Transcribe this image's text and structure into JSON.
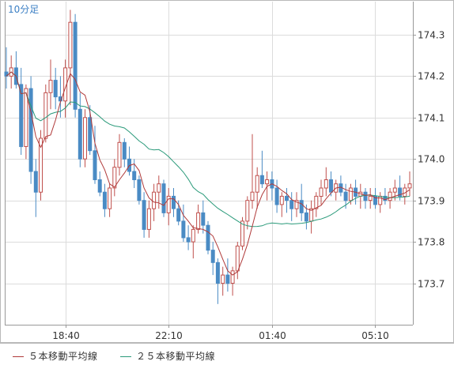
{
  "chart_data": {
    "type": "candlestick",
    "timeframe_label": "10分足",
    "y_ticks": [
      173.7,
      173.8,
      173.9,
      174.0,
      174.1,
      174.2,
      174.3
    ],
    "y_tick_labels": [
      "173.7",
      "173.8",
      "173.9",
      "174.0",
      "174.1",
      "174.2",
      "174.3"
    ],
    "ylim": [
      173.6,
      174.38
    ],
    "x_tick_labels": [
      "18:40",
      "22:10",
      "01:40",
      "05:10"
    ],
    "grid": true,
    "legend_position": "bottom",
    "series": [
      {
        "name": "５本移動平均線",
        "color": "#b03a3a"
      },
      {
        "name": "２５本移動平均線",
        "color": "#2a9a7a"
      }
    ],
    "candles": [
      [
        174.21,
        174.27,
        174.17,
        174.2
      ],
      [
        174.2,
        174.25,
        174.17,
        174.22
      ],
      [
        174.22,
        174.26,
        174.17,
        174.18
      ],
      [
        174.18,
        174.22,
        174.01,
        174.03
      ],
      [
        174.03,
        174.18,
        174.0,
        174.17
      ],
      [
        174.17,
        174.2,
        173.94,
        173.97
      ],
      [
        173.97,
        174.0,
        173.86,
        173.92
      ],
      [
        173.92,
        174.07,
        173.9,
        174.05
      ],
      [
        174.05,
        174.18,
        174.04,
        174.16
      ],
      [
        174.16,
        174.24,
        174.12,
        174.19
      ],
      [
        174.19,
        174.22,
        174.12,
        174.15
      ],
      [
        174.15,
        174.2,
        174.1,
        174.14
      ],
      [
        174.14,
        174.24,
        174.1,
        174.22
      ],
      [
        174.22,
        174.36,
        174.13,
        174.33
      ],
      [
        174.33,
        174.35,
        174.1,
        174.12
      ],
      [
        174.12,
        174.16,
        173.98,
        174.0
      ],
      [
        174.0,
        174.12,
        173.98,
        174.1
      ],
      [
        174.1,
        174.13,
        174.01,
        174.02
      ],
      [
        174.02,
        174.08,
        173.94,
        173.95
      ],
      [
        173.95,
        173.97,
        173.91,
        173.92
      ],
      [
        173.92,
        173.94,
        173.86,
        173.88
      ],
      [
        173.88,
        173.94,
        173.86,
        173.93
      ],
      [
        173.93,
        174.0,
        173.91,
        173.98
      ],
      [
        173.98,
        174.06,
        173.96,
        174.04
      ],
      [
        174.04,
        174.05,
        173.98,
        174.0
      ],
      [
        174.0,
        174.03,
        173.96,
        173.97
      ],
      [
        173.97,
        174.0,
        173.93,
        173.95
      ],
      [
        173.95,
        173.96,
        173.89,
        173.9
      ],
      [
        173.9,
        173.92,
        173.81,
        173.83
      ],
      [
        173.83,
        173.9,
        173.81,
        173.88
      ],
      [
        173.88,
        173.94,
        173.85,
        173.92
      ],
      [
        173.92,
        173.96,
        173.88,
        173.94
      ],
      [
        173.94,
        173.95,
        173.86,
        173.87
      ],
      [
        173.87,
        173.93,
        173.84,
        173.91
      ],
      [
        173.91,
        173.93,
        173.86,
        173.88
      ],
      [
        173.88,
        173.9,
        173.84,
        173.85
      ],
      [
        173.85,
        173.89,
        173.8,
        173.81
      ],
      [
        173.81,
        173.84,
        173.78,
        173.8
      ],
      [
        173.8,
        173.84,
        173.76,
        173.83
      ],
      [
        173.83,
        173.89,
        173.82,
        173.87
      ],
      [
        173.87,
        173.9,
        173.82,
        173.84
      ],
      [
        173.84,
        173.85,
        173.77,
        173.78
      ],
      [
        173.78,
        173.8,
        173.72,
        173.75
      ],
      [
        173.75,
        173.76,
        173.65,
        173.7
      ],
      [
        173.7,
        173.74,
        173.67,
        173.72
      ],
      [
        173.72,
        173.76,
        173.68,
        173.7
      ],
      [
        173.7,
        173.74,
        173.67,
        173.73
      ],
      [
        173.73,
        173.8,
        173.71,
        173.79
      ],
      [
        173.79,
        173.86,
        173.78,
        173.85
      ],
      [
        173.85,
        173.91,
        173.83,
        173.9
      ],
      [
        173.9,
        174.06,
        173.88,
        173.92
      ],
      [
        173.92,
        173.98,
        173.88,
        173.96
      ],
      [
        173.96,
        174.02,
        173.93,
        173.94
      ],
      [
        173.94,
        173.97,
        173.9,
        173.95
      ],
      [
        173.95,
        173.97,
        173.9,
        173.93
      ],
      [
        173.93,
        173.95,
        173.87,
        173.89
      ],
      [
        173.89,
        173.92,
        173.86,
        173.91
      ],
      [
        173.91,
        173.93,
        173.87,
        173.9
      ],
      [
        173.9,
        173.92,
        173.85,
        173.88
      ],
      [
        173.88,
        173.92,
        173.86,
        173.9
      ],
      [
        173.9,
        173.94,
        173.85,
        173.87
      ],
      [
        173.87,
        173.89,
        173.83,
        173.85
      ],
      [
        173.85,
        173.9,
        173.82,
        173.88
      ],
      [
        173.88,
        173.92,
        173.86,
        173.91
      ],
      [
        173.91,
        173.95,
        173.89,
        173.93
      ],
      [
        173.93,
        173.98,
        173.91,
        173.95
      ],
      [
        173.95,
        173.97,
        173.91,
        173.92
      ],
      [
        173.92,
        173.95,
        173.9,
        173.94
      ],
      [
        173.94,
        173.96,
        173.91,
        173.92
      ],
      [
        173.92,
        173.94,
        173.88,
        173.9
      ],
      [
        173.9,
        173.94,
        173.89,
        173.93
      ],
      [
        173.93,
        173.95,
        173.89,
        173.91
      ],
      [
        173.91,
        173.94,
        173.88,
        173.92
      ],
      [
        173.92,
        173.93,
        173.88,
        173.9
      ],
      [
        173.9,
        173.93,
        173.88,
        173.91
      ],
      [
        173.91,
        173.93,
        173.88,
        173.89
      ],
      [
        173.89,
        173.92,
        173.87,
        173.91
      ],
      [
        173.91,
        173.93,
        173.89,
        173.9
      ],
      [
        173.9,
        173.93,
        173.88,
        173.92
      ],
      [
        173.92,
        173.95,
        173.9,
        173.93
      ],
      [
        173.93,
        173.96,
        173.9,
        173.91
      ],
      [
        173.91,
        173.94,
        173.89,
        173.93
      ],
      [
        173.93,
        173.97,
        173.91,
        173.94
      ]
    ]
  },
  "legend": {
    "ma5_label": "５本移動平均線",
    "ma25_label": "２５本移動平均線"
  }
}
